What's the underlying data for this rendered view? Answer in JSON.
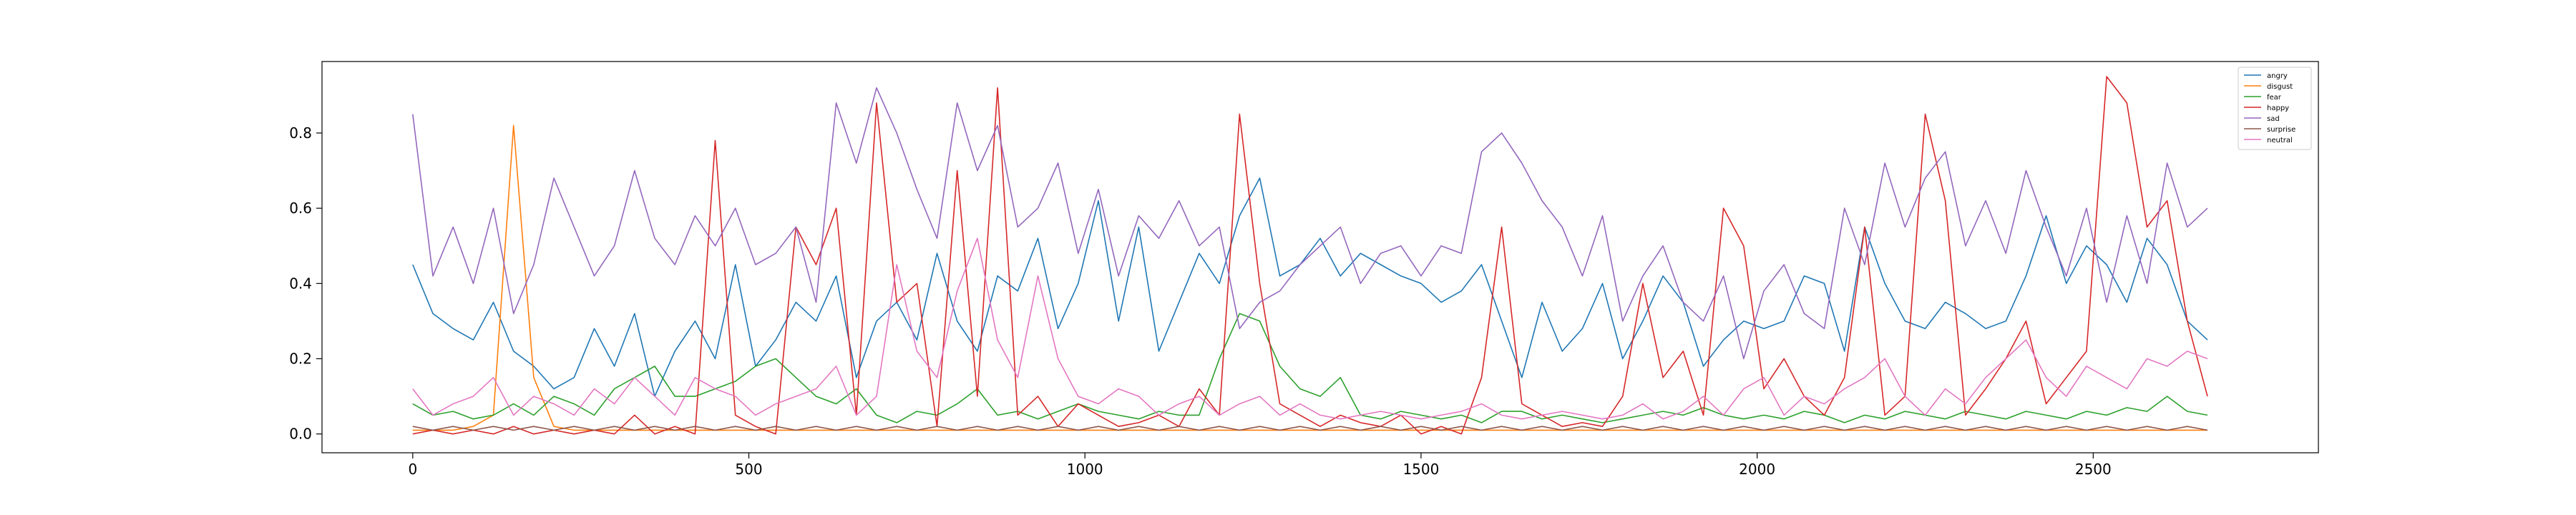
{
  "chart_data": {
    "type": "line",
    "title": "",
    "xlabel": "",
    "ylabel": "",
    "xlim": [
      -135,
      2835
    ],
    "ylim": [
      -0.05,
      0.99
    ],
    "xticks": [
      0,
      500,
      1000,
      1500,
      2000,
      2500
    ],
    "xtick_labels": [
      "0",
      "500",
      "1000",
      "1500",
      "2000",
      "2500"
    ],
    "yticks": [
      0.0,
      0.2,
      0.4,
      0.6,
      0.8
    ],
    "ytick_labels": [
      "0.0",
      "0.2",
      "0.4",
      "0.6",
      "0.8"
    ],
    "grid": false,
    "legend_position": "top-right",
    "sample_interval": 30,
    "series": [
      {
        "name": "angry",
        "color": "#1f77b4",
        "values": [
          0.45,
          0.32,
          0.28,
          0.25,
          0.35,
          0.22,
          0.18,
          0.12,
          0.15,
          0.28,
          0.18,
          0.32,
          0.1,
          0.22,
          0.3,
          0.2,
          0.45,
          0.18,
          0.25,
          0.35,
          0.3,
          0.42,
          0.15,
          0.3,
          0.35,
          0.25,
          0.48,
          0.3,
          0.22,
          0.42,
          0.38,
          0.52,
          0.28,
          0.4,
          0.62,
          0.3,
          0.55,
          0.22,
          0.35,
          0.48,
          0.4,
          0.58,
          0.68,
          0.42,
          0.45,
          0.52,
          0.42,
          0.48,
          0.45,
          0.42,
          0.4,
          0.35,
          0.38,
          0.45,
          0.3,
          0.15,
          0.35,
          0.22,
          0.28,
          0.4,
          0.2,
          0.3,
          0.42,
          0.35,
          0.18,
          0.25,
          0.3,
          0.28,
          0.3,
          0.42,
          0.4,
          0.22,
          0.55,
          0.4,
          0.3,
          0.28,
          0.35,
          0.32,
          0.28,
          0.3,
          0.42,
          0.58,
          0.4,
          0.5,
          0.45,
          0.35,
          0.52,
          0.45,
          0.3,
          0.25
        ]
      },
      {
        "name": "disgust",
        "color": "#ff7f0e",
        "values": [
          0.01,
          0.01,
          0.01,
          0.02,
          0.05,
          0.82,
          0.15,
          0.02,
          0.01,
          0.01,
          0.01,
          0.01,
          0.01,
          0.01,
          0.01,
          0.01,
          0.01,
          0.01,
          0.01,
          0.01,
          0.01,
          0.01,
          0.01,
          0.01,
          0.01,
          0.01,
          0.01,
          0.01,
          0.01,
          0.01,
          0.01,
          0.01,
          0.01,
          0.01,
          0.01,
          0.01,
          0.01,
          0.01,
          0.01,
          0.01,
          0.01,
          0.01,
          0.01,
          0.01,
          0.01,
          0.01,
          0.01,
          0.01,
          0.01,
          0.01,
          0.01,
          0.01,
          0.01,
          0.01,
          0.01,
          0.01,
          0.01,
          0.01,
          0.01,
          0.01,
          0.01,
          0.01,
          0.01,
          0.01,
          0.01,
          0.01,
          0.01,
          0.01,
          0.01,
          0.01,
          0.01,
          0.01,
          0.01,
          0.01,
          0.01,
          0.01,
          0.01,
          0.01,
          0.01,
          0.01,
          0.01,
          0.01,
          0.01,
          0.01,
          0.01,
          0.01,
          0.01,
          0.01,
          0.01,
          0.01
        ]
      },
      {
        "name": "fear",
        "color": "#2ca02c",
        "values": [
          0.08,
          0.05,
          0.06,
          0.04,
          0.05,
          0.08,
          0.05,
          0.1,
          0.08,
          0.05,
          0.12,
          0.15,
          0.18,
          0.1,
          0.1,
          0.12,
          0.14,
          0.18,
          0.2,
          0.15,
          0.1,
          0.08,
          0.12,
          0.05,
          0.03,
          0.06,
          0.05,
          0.08,
          0.12,
          0.05,
          0.06,
          0.04,
          0.06,
          0.08,
          0.06,
          0.05,
          0.04,
          0.06,
          0.05,
          0.05,
          0.2,
          0.32,
          0.3,
          0.18,
          0.12,
          0.1,
          0.15,
          0.05,
          0.04,
          0.06,
          0.05,
          0.04,
          0.05,
          0.03,
          0.06,
          0.06,
          0.04,
          0.05,
          0.04,
          0.03,
          0.04,
          0.05,
          0.06,
          0.05,
          0.07,
          0.05,
          0.04,
          0.05,
          0.04,
          0.06,
          0.05,
          0.03,
          0.05,
          0.04,
          0.06,
          0.05,
          0.04,
          0.06,
          0.05,
          0.04,
          0.06,
          0.05,
          0.04,
          0.06,
          0.05,
          0.07,
          0.06,
          0.1,
          0.06,
          0.05
        ]
      },
      {
        "name": "happy",
        "color": "#d62728",
        "values": [
          0.0,
          0.01,
          0.0,
          0.01,
          0.0,
          0.02,
          0.0,
          0.01,
          0.0,
          0.01,
          0.0,
          0.05,
          0.0,
          0.02,
          0.0,
          0.78,
          0.05,
          0.02,
          0.0,
          0.55,
          0.45,
          0.6,
          0.05,
          0.88,
          0.35,
          0.4,
          0.02,
          0.7,
          0.1,
          0.92,
          0.05,
          0.1,
          0.02,
          0.08,
          0.05,
          0.02,
          0.03,
          0.05,
          0.02,
          0.12,
          0.05,
          0.85,
          0.4,
          0.08,
          0.05,
          0.02,
          0.05,
          0.03,
          0.02,
          0.05,
          0.0,
          0.02,
          0.0,
          0.15,
          0.55,
          0.08,
          0.05,
          0.02,
          0.03,
          0.02,
          0.1,
          0.4,
          0.15,
          0.22,
          0.05,
          0.6,
          0.5,
          0.12,
          0.2,
          0.1,
          0.05,
          0.15,
          0.55,
          0.05,
          0.1,
          0.85,
          0.62,
          0.05,
          0.12,
          0.2,
          0.3,
          0.08,
          0.15,
          0.22,
          0.95,
          0.88,
          0.55,
          0.62,
          0.3,
          0.1
        ]
      },
      {
        "name": "sad",
        "color": "#9467bd",
        "values": [
          0.85,
          0.42,
          0.55,
          0.4,
          0.6,
          0.32,
          0.45,
          0.68,
          0.55,
          0.42,
          0.5,
          0.7,
          0.52,
          0.45,
          0.58,
          0.5,
          0.6,
          0.45,
          0.48,
          0.55,
          0.35,
          0.88,
          0.72,
          0.92,
          0.8,
          0.65,
          0.52,
          0.88,
          0.7,
          0.82,
          0.55,
          0.6,
          0.72,
          0.48,
          0.65,
          0.42,
          0.58,
          0.52,
          0.62,
          0.5,
          0.55,
          0.28,
          0.35,
          0.38,
          0.45,
          0.5,
          0.55,
          0.4,
          0.48,
          0.5,
          0.42,
          0.5,
          0.48,
          0.75,
          0.8,
          0.72,
          0.62,
          0.55,
          0.42,
          0.58,
          0.3,
          0.42,
          0.5,
          0.35,
          0.3,
          0.42,
          0.2,
          0.38,
          0.45,
          0.32,
          0.28,
          0.6,
          0.45,
          0.72,
          0.55,
          0.68,
          0.75,
          0.5,
          0.62,
          0.48,
          0.7,
          0.55,
          0.42,
          0.6,
          0.35,
          0.58,
          0.4,
          0.72,
          0.55,
          0.6
        ]
      },
      {
        "name": "surprise",
        "color": "#8c564b",
        "values": [
          0.02,
          0.01,
          0.02,
          0.01,
          0.02,
          0.01,
          0.02,
          0.01,
          0.02,
          0.01,
          0.02,
          0.01,
          0.02,
          0.01,
          0.02,
          0.01,
          0.02,
          0.01,
          0.02,
          0.01,
          0.02,
          0.01,
          0.02,
          0.01,
          0.02,
          0.01,
          0.02,
          0.01,
          0.02,
          0.01,
          0.02,
          0.01,
          0.02,
          0.01,
          0.02,
          0.01,
          0.02,
          0.01,
          0.02,
          0.01,
          0.02,
          0.01,
          0.02,
          0.01,
          0.02,
          0.01,
          0.02,
          0.01,
          0.02,
          0.01,
          0.02,
          0.01,
          0.02,
          0.01,
          0.02,
          0.01,
          0.02,
          0.01,
          0.02,
          0.01,
          0.02,
          0.01,
          0.02,
          0.01,
          0.02,
          0.01,
          0.02,
          0.01,
          0.02,
          0.01,
          0.02,
          0.01,
          0.02,
          0.01,
          0.02,
          0.01,
          0.02,
          0.01,
          0.02,
          0.01,
          0.02,
          0.01,
          0.02,
          0.01,
          0.02,
          0.01,
          0.02,
          0.01,
          0.02,
          0.01
        ]
      },
      {
        "name": "neutral",
        "color": "#e377c2",
        "values": [
          0.12,
          0.05,
          0.08,
          0.1,
          0.15,
          0.05,
          0.1,
          0.08,
          0.05,
          0.12,
          0.08,
          0.15,
          0.1,
          0.05,
          0.15,
          0.12,
          0.1,
          0.05,
          0.08,
          0.1,
          0.12,
          0.18,
          0.05,
          0.1,
          0.45,
          0.22,
          0.15,
          0.38,
          0.52,
          0.25,
          0.15,
          0.42,
          0.2,
          0.1,
          0.08,
          0.12,
          0.1,
          0.05,
          0.08,
          0.1,
          0.05,
          0.08,
          0.1,
          0.05,
          0.08,
          0.05,
          0.04,
          0.05,
          0.06,
          0.05,
          0.04,
          0.05,
          0.06,
          0.08,
          0.05,
          0.04,
          0.05,
          0.06,
          0.05,
          0.04,
          0.05,
          0.08,
          0.04,
          0.06,
          0.1,
          0.05,
          0.12,
          0.15,
          0.05,
          0.1,
          0.08,
          0.12,
          0.15,
          0.2,
          0.1,
          0.05,
          0.12,
          0.08,
          0.15,
          0.2,
          0.25,
          0.15,
          0.1,
          0.18,
          0.15,
          0.12,
          0.2,
          0.18,
          0.22,
          0.2
        ]
      }
    ]
  }
}
